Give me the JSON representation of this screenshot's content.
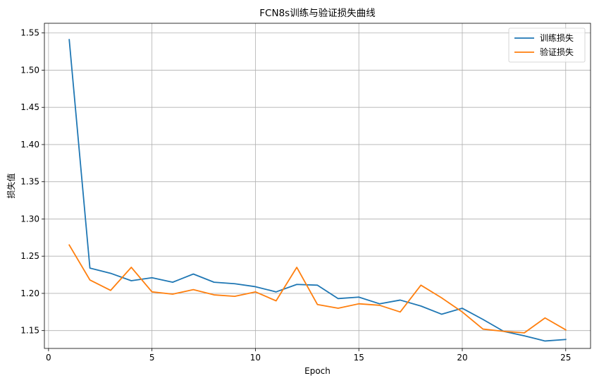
{
  "chart_data": {
    "type": "line",
    "title": "FCN8s训练与验证损失曲线",
    "xlabel": "Epoch",
    "ylabel": "损失值",
    "xlim": [
      -0.2,
      26.2
    ],
    "ylim": [
      1.126,
      1.563
    ],
    "xticks": [
      0,
      5,
      10,
      15,
      20,
      25
    ],
    "yticks": [
      1.15,
      1.2,
      1.25,
      1.3,
      1.35,
      1.4,
      1.45,
      1.5,
      1.55
    ],
    "grid": true,
    "legend_position": "top-right",
    "x": [
      1,
      2,
      3,
      4,
      5,
      6,
      7,
      8,
      9,
      10,
      11,
      12,
      13,
      14,
      15,
      16,
      17,
      18,
      19,
      20,
      21,
      22,
      23,
      24,
      25
    ],
    "series": [
      {
        "name": "训练损失",
        "color": "#1f77b4",
        "values": [
          1.541,
          1.234,
          1.227,
          1.217,
          1.221,
          1.215,
          1.226,
          1.215,
          1.213,
          1.209,
          1.202,
          1.212,
          1.211,
          1.193,
          1.195,
          1.186,
          1.191,
          1.183,
          1.172,
          1.18,
          1.165,
          1.149,
          1.143,
          1.136,
          1.138
        ]
      },
      {
        "name": "验证损失",
        "color": "#ff7f0e",
        "values": [
          1.265,
          1.218,
          1.204,
          1.235,
          1.202,
          1.199,
          1.205,
          1.198,
          1.196,
          1.202,
          1.19,
          1.235,
          1.185,
          1.18,
          1.186,
          1.184,
          1.175,
          1.211,
          1.194,
          1.175,
          1.152,
          1.149,
          1.147,
          1.167,
          1.151
        ]
      }
    ]
  }
}
